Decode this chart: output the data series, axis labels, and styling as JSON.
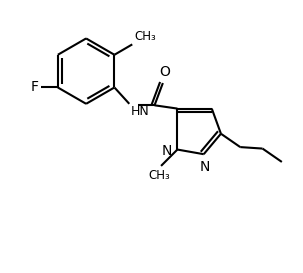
{
  "background_color": "#ffffff",
  "line_color": "#000000",
  "text_color": "#000000",
  "bond_lw": 1.5,
  "font_size": 9,
  "figsize": [
    3.03,
    2.73
  ],
  "dpi": 100,
  "xlim": [
    0,
    10
  ],
  "ylim": [
    0,
    9
  ]
}
